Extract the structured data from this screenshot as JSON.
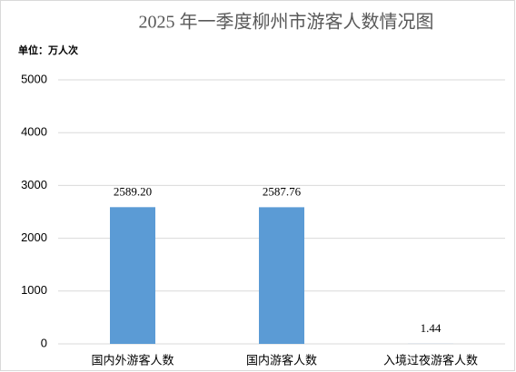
{
  "chart_data": {
    "type": "bar",
    "title": "2025 年一季度柳州市游客人数情况图",
    "unit_label": "单位：万人次",
    "categories": [
      "国内外游客人数",
      "国内游客人数",
      "入境过夜游客人数"
    ],
    "values": [
      2589.2,
      2587.76,
      1.44
    ],
    "value_labels": [
      "2589.20",
      "2587.76",
      "1.44"
    ],
    "color": "#5b9bd5",
    "ylim": [
      0,
      5000
    ],
    "yticks": [
      0,
      1000,
      2000,
      3000,
      4000,
      5000
    ],
    "grid": true
  }
}
